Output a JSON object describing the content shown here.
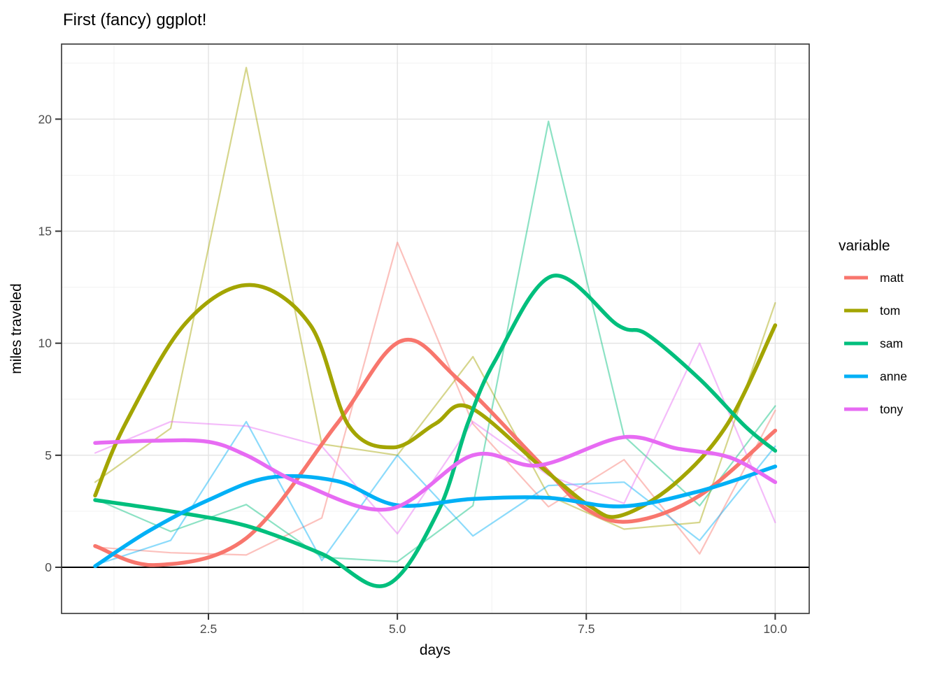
{
  "chart_data": {
    "type": "line",
    "title": "First (fancy) ggplot!",
    "xlabel": "days",
    "ylabel": "miles traveled",
    "legend_title": "variable",
    "legend_position": "right",
    "grid": true,
    "panel_background": "#ffffff",
    "grid_major_color": "#e3e3e3",
    "grid_minor_color": "#f0f0f0",
    "panel_border_color": "#333333",
    "baseline_color": "#000000",
    "x": [
      1,
      2,
      3,
      4,
      5,
      6,
      7,
      8,
      9,
      10
    ],
    "xlim": [
      0.556,
      10.45
    ],
    "ylim": [
      -2.06,
      23.35
    ],
    "x_ticks": {
      "values": [
        2.5,
        5.0,
        7.5,
        10.0
      ],
      "labels": [
        "2.5",
        "5.0",
        "7.5",
        "10.0"
      ]
    },
    "y_ticks": {
      "values": [
        0,
        5,
        10,
        15,
        20
      ],
      "labels": [
        "0",
        "5",
        "10",
        "15",
        "20"
      ]
    },
    "x_minor": [
      1.25,
      3.75,
      6.25,
      8.75
    ],
    "y_minor": [
      2.5,
      7.5,
      12.5,
      17.5,
      22.5
    ],
    "baseline_y": 0,
    "raw_line_opacity": 0.45,
    "series": [
      {
        "name": "matt",
        "color": "#F8766D",
        "raw": [
          0.9,
          0.65,
          0.55,
          2.2,
          14.5,
          6.4,
          2.7,
          4.8,
          0.6,
          7.0
        ],
        "smooth": [
          [
            1,
            0.95
          ],
          [
            1.8,
            0.1
          ],
          [
            3,
            1.3
          ],
          [
            4.2,
            6.4
          ],
          [
            5.05,
            10.1
          ],
          [
            5.8,
            8.4
          ],
          [
            6.9,
            4.6
          ],
          [
            7.5,
            2.6
          ],
          [
            8.1,
            2.05
          ],
          [
            9,
            3.2
          ],
          [
            10,
            6.1
          ]
        ]
      },
      {
        "name": "tom",
        "color": "#A3A500",
        "raw": [
          3.8,
          6.2,
          22.3,
          5.5,
          5.0,
          9.4,
          3.2,
          1.7,
          2.0,
          11.8
        ],
        "smooth": [
          [
            1,
            3.2
          ],
          [
            1.4,
            6.4
          ],
          [
            2.2,
            10.9
          ],
          [
            3.05,
            12.6
          ],
          [
            3.85,
            10.8
          ],
          [
            4.36,
            6.3
          ],
          [
            4.95,
            5.35
          ],
          [
            5.5,
            6.4
          ],
          [
            5.95,
            7.15
          ],
          [
            6.93,
            4.4
          ],
          [
            7.56,
            2.7
          ],
          [
            7.95,
            2.3
          ],
          [
            8.66,
            3.7
          ],
          [
            9.37,
            6.4
          ],
          [
            10,
            10.8
          ]
        ]
      },
      {
        "name": "sam",
        "color": "#00BF7D",
        "raw": [
          3.05,
          1.6,
          2.8,
          0.45,
          0.25,
          2.75,
          19.9,
          5.85,
          2.75,
          7.2
        ],
        "smooth": [
          [
            1,
            3.0
          ],
          [
            2,
            2.5
          ],
          [
            3,
            1.85
          ],
          [
            4,
            0.6
          ],
          [
            4.85,
            -0.8
          ],
          [
            5.54,
            2.5
          ],
          [
            5.93,
            6.4
          ],
          [
            6.29,
            9.2
          ],
          [
            7.05,
            13.0
          ],
          [
            7.92,
            10.8
          ],
          [
            8.3,
            10.4
          ],
          [
            9,
            8.4
          ],
          [
            9.6,
            6.3
          ],
          [
            10,
            5.2
          ]
        ]
      },
      {
        "name": "anne",
        "color": "#00B0F6",
        "raw": [
          0.1,
          1.2,
          6.5,
          0.3,
          5.0,
          1.4,
          3.65,
          3.8,
          1.2,
          5.4
        ],
        "smooth": [
          [
            1,
            0.05
          ],
          [
            1.7,
            1.6
          ],
          [
            2.5,
            3.0
          ],
          [
            3.3,
            4.0
          ],
          [
            4.2,
            3.85
          ],
          [
            5,
            2.77
          ],
          [
            6,
            3.05
          ],
          [
            7,
            3.1
          ],
          [
            7.97,
            2.72
          ],
          [
            9,
            3.4
          ],
          [
            10,
            4.5
          ]
        ]
      },
      {
        "name": "tony",
        "color": "#E76BF3",
        "raw": [
          5.1,
          6.5,
          6.3,
          5.4,
          1.5,
          6.5,
          4.1,
          2.85,
          10.0,
          2.0
        ],
        "smooth": [
          [
            1,
            5.55
          ],
          [
            1.8,
            5.65
          ],
          [
            2.5,
            5.6
          ],
          [
            3,
            5.0
          ],
          [
            3.75,
            3.7
          ],
          [
            4.9,
            2.6
          ],
          [
            6,
            5.0
          ],
          [
            6.87,
            4.55
          ],
          [
            7.98,
            5.8
          ],
          [
            8.7,
            5.3
          ],
          [
            9.4,
            4.9
          ],
          [
            10,
            3.8
          ]
        ]
      }
    ]
  }
}
